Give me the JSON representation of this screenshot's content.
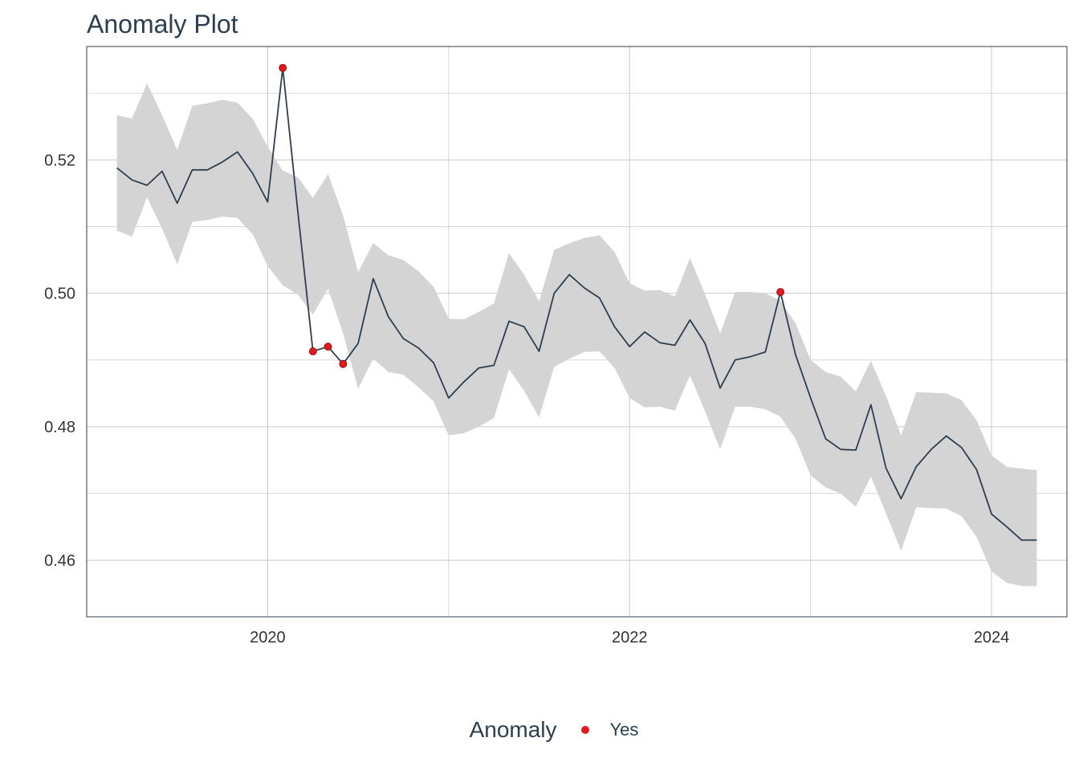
{
  "title": "Anomaly Plot",
  "colors": {
    "line": "#2c3e50",
    "band": "#d4d4d4",
    "anomaly": "#e31a1c",
    "grid": "#c8c8c8",
    "panel_border": "#2c3e50"
  },
  "legend": {
    "title": "Anomaly",
    "items": [
      {
        "label": "Yes",
        "color": "#e31a1c"
      }
    ],
    "position": "bottom"
  },
  "chart_data": {
    "type": "line",
    "title": "Anomaly Plot",
    "xlabel": "",
    "ylabel": "",
    "grid": true,
    "xlim": [
      "2019-01-01",
      "2024-06-01"
    ],
    "ylim": [
      0.4515,
      0.537
    ],
    "x_ticks": [
      "2020",
      "2022",
      "2024"
    ],
    "y_ticks": [
      "0.46",
      "0.48",
      "0.50",
      "0.52"
    ],
    "x": [
      "2019-03",
      "2019-04",
      "2019-05",
      "2019-06",
      "2019-07",
      "2019-08",
      "2019-09",
      "2019-10",
      "2019-11",
      "2019-12",
      "2020-01",
      "2020-02",
      "2020-03",
      "2020-04",
      "2020-05",
      "2020-06",
      "2020-07",
      "2020-08",
      "2020-09",
      "2020-10",
      "2020-11",
      "2020-12",
      "2021-01",
      "2021-02",
      "2021-03",
      "2021-04",
      "2021-05",
      "2021-06",
      "2021-07",
      "2021-08",
      "2021-09",
      "2021-10",
      "2021-11",
      "2021-12",
      "2022-01",
      "2022-02",
      "2022-03",
      "2022-04",
      "2022-05",
      "2022-06",
      "2022-07",
      "2022-08",
      "2022-09",
      "2022-10",
      "2022-11",
      "2022-12",
      "2023-01",
      "2023-02",
      "2023-03",
      "2023-04",
      "2023-05",
      "2023-06",
      "2023-07",
      "2023-08",
      "2023-09",
      "2023-10",
      "2023-11",
      "2023-12",
      "2024-01",
      "2024-02",
      "2024-03",
      "2024-04"
    ],
    "series": [
      {
        "name": "observed",
        "values": [
          0.5188,
          0.517,
          0.5162,
          0.5183,
          0.5135,
          0.5185,
          0.5185,
          0.5197,
          0.5212,
          0.518,
          0.5137,
          0.5338,
          0.5122,
          0.4913,
          0.492,
          0.4894,
          0.4925,
          0.5022,
          0.4965,
          0.4932,
          0.4918,
          0.4896,
          0.4843,
          0.4867,
          0.4888,
          0.4892,
          0.4958,
          0.495,
          0.4913,
          0.5,
          0.5028,
          0.5008,
          0.4993,
          0.495,
          0.492,
          0.4942,
          0.4926,
          0.4922,
          0.496,
          0.4925,
          0.4858,
          0.49,
          0.4905,
          0.4912,
          0.5002,
          0.4908,
          0.4843,
          0.4782,
          0.4766,
          0.4765,
          0.4833,
          0.4738,
          0.4692,
          0.474,
          0.4766,
          0.4786,
          0.4769,
          0.4736,
          0.4669,
          0.465,
          0.463,
          0.463
        ]
      }
    ],
    "band": {
      "upper": [
        0.5267,
        0.5262,
        0.5315,
        0.5267,
        0.5215,
        0.5281,
        0.5285,
        0.529,
        0.5286,
        0.5262,
        0.522,
        0.5184,
        0.5174,
        0.5143,
        0.5179,
        0.5117,
        0.5032,
        0.5075,
        0.5057,
        0.505,
        0.5033,
        0.501,
        0.4962,
        0.4961,
        0.4972,
        0.4985,
        0.506,
        0.5028,
        0.4988,
        0.5065,
        0.5075,
        0.5083,
        0.5087,
        0.5062,
        0.5015,
        0.5004,
        0.5005,
        0.4995,
        0.5053,
        0.4999,
        0.494,
        0.5002,
        0.5002,
        0.5,
        0.4989,
        0.4955,
        0.49,
        0.4882,
        0.4875,
        0.4853,
        0.4899,
        0.4846,
        0.4787,
        0.4852,
        0.4851,
        0.485,
        0.484,
        0.481,
        0.4757,
        0.474,
        0.4737,
        0.4735
      ],
      "lower": [
        0.5094,
        0.5085,
        0.5144,
        0.5097,
        0.5043,
        0.5107,
        0.511,
        0.5115,
        0.5113,
        0.5089,
        0.5041,
        0.5012,
        0.4998,
        0.4968,
        0.5007,
        0.494,
        0.4857,
        0.4902,
        0.4882,
        0.4878,
        0.4859,
        0.4838,
        0.4787,
        0.479,
        0.48,
        0.4813,
        0.4886,
        0.4854,
        0.4814,
        0.489,
        0.4902,
        0.4912,
        0.4913,
        0.4888,
        0.4843,
        0.4829,
        0.483,
        0.4824,
        0.4877,
        0.4823,
        0.4766,
        0.483,
        0.483,
        0.4826,
        0.4815,
        0.4782,
        0.4727,
        0.4709,
        0.47,
        0.468,
        0.4725,
        0.467,
        0.4614,
        0.4679,
        0.4678,
        0.4677,
        0.4666,
        0.4635,
        0.4583,
        0.4566,
        0.4561,
        0.4561
      ]
    },
    "anomalies": [
      {
        "x": "2020-02",
        "y": 0.5338,
        "label": "Yes"
      },
      {
        "x": "2020-04",
        "y": 0.4913,
        "label": "Yes"
      },
      {
        "x": "2020-05",
        "y": 0.492,
        "label": "Yes"
      },
      {
        "x": "2020-06",
        "y": 0.4894,
        "label": "Yes"
      },
      {
        "x": "2022-11",
        "y": 0.5002,
        "label": "Yes"
      }
    ]
  }
}
